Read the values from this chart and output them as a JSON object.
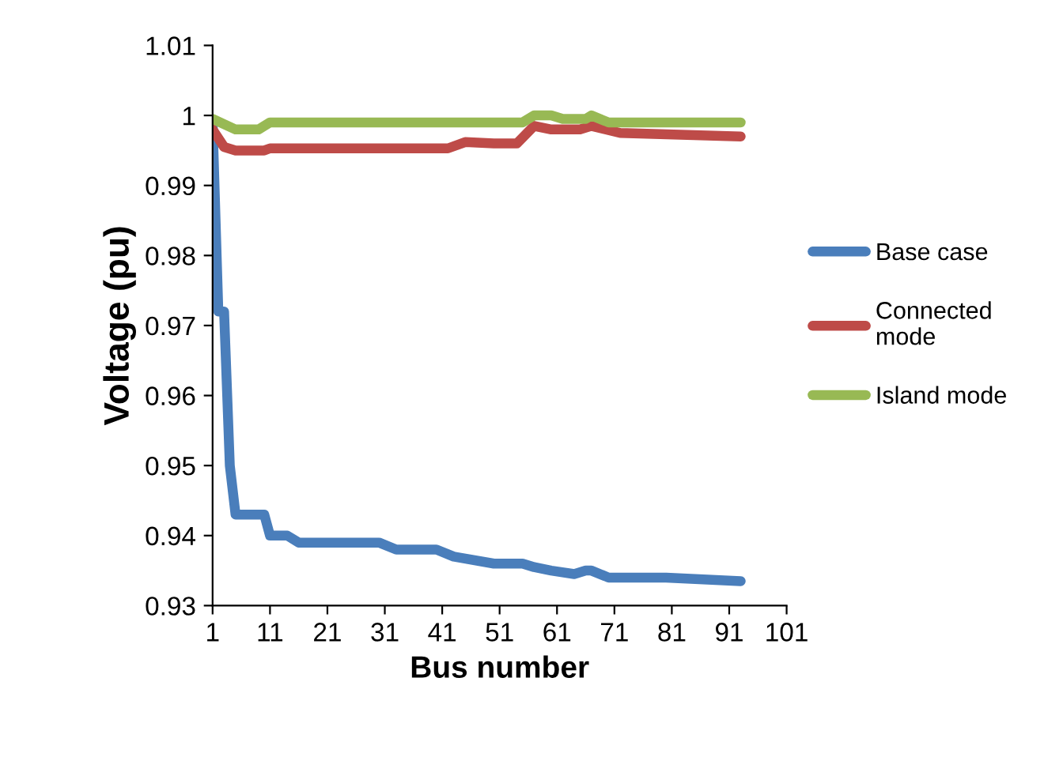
{
  "chart_data": {
    "type": "line",
    "xlabel": "Bus number",
    "ylabel": "Voltage (pu)",
    "xlim": [
      1,
      101
    ],
    "xticks": [
      1,
      11,
      21,
      31,
      41,
      51,
      61,
      71,
      81,
      91,
      101
    ],
    "ylim": [
      0.93,
      1.01
    ],
    "yticks": [
      0.93,
      0.94,
      0.95,
      0.96,
      0.97,
      0.98,
      0.99,
      1,
      1.01
    ],
    "grid": false,
    "legend": "right",
    "marker": "none",
    "line_style": "solid",
    "series": [
      {
        "name": "Base case",
        "color": "#4a7ebb",
        "x": [
          1,
          2,
          3,
          4,
          5,
          10,
          11,
          14,
          16,
          30,
          33,
          40,
          43,
          50,
          55,
          57,
          60,
          64,
          66,
          67,
          70,
          80,
          93
        ],
        "values": [
          0.999,
          0.972,
          0.972,
          0.95,
          0.943,
          0.943,
          0.94,
          0.94,
          0.939,
          0.939,
          0.938,
          0.938,
          0.937,
          0.936,
          0.936,
          0.9355,
          0.935,
          0.9345,
          0.935,
          0.935,
          0.934,
          0.934,
          0.9335
        ]
      },
      {
        "name": "Connected\nmode",
        "color": "#be4b48",
        "x": [
          1,
          3,
          5,
          10,
          11,
          42,
          45,
          50,
          54,
          57,
          60,
          65,
          67,
          72,
          93
        ],
        "values": [
          0.998,
          0.9955,
          0.995,
          0.995,
          0.9953,
          0.9953,
          0.9962,
          0.996,
          0.996,
          0.9985,
          0.998,
          0.998,
          0.9985,
          0.9975,
          0.997
        ]
      },
      {
        "name": "Island mode",
        "color": "#98b954",
        "x": [
          1,
          5,
          9,
          11,
          55,
          57,
          60,
          62,
          66,
          67,
          70,
          93
        ],
        "values": [
          0.9995,
          0.998,
          0.998,
          0.999,
          0.999,
          1.0,
          1.0,
          0.9995,
          0.9995,
          1.0,
          0.999,
          0.999
        ]
      }
    ]
  }
}
